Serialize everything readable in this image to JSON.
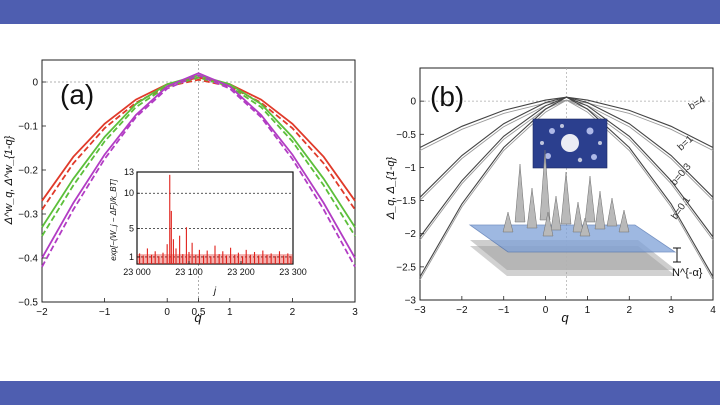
{
  "colors": {
    "band": "#4e5eb0",
    "red": "#e03a2a",
    "green": "#5cbf3a",
    "purple": "#b23cc4",
    "gray": "#555555",
    "inset_bar": "#e0201a"
  },
  "chart_data": [
    {
      "type": "line",
      "panel_label": "(a)",
      "xlabel": "q",
      "ylabel": "Δ^w_q, Δ^w_{1-q}",
      "xlim": [
        -2,
        3
      ],
      "ylim": [
        -0.5,
        0.05
      ],
      "x_ticks": [
        -2,
        -1,
        0,
        0.5,
        1,
        2,
        3
      ],
      "x_tick_labels": [
        "−2",
        "−1",
        "0",
        "0.5",
        "1",
        "2",
        "3"
      ],
      "y_ticks": [
        0,
        -0.1,
        -0.2,
        -0.3,
        -0.4,
        -0.5
      ],
      "y_tick_labels": [
        "0",
        "−0.1",
        "−0.2",
        "−0.3",
        "−0.4",
        "−0.5"
      ],
      "reference_lines": {
        "y": 0,
        "x": 0.5
      },
      "series": [
        {
          "color": "red",
          "style": "solid",
          "x": [
            -2,
            -1.5,
            -1,
            -0.5,
            0,
            0.5,
            1,
            1.5,
            2,
            2.5,
            3
          ],
          "y": [
            -0.27,
            -0.17,
            -0.095,
            -0.04,
            -0.005,
            0.01,
            -0.005,
            -0.04,
            -0.095,
            -0.17,
            -0.27
          ]
        },
        {
          "color": "red",
          "style": "dashed",
          "x": [
            -2,
            -1.5,
            -1,
            -0.5,
            0,
            0.5,
            1,
            1.5,
            2,
            2.5,
            3
          ],
          "y": [
            -0.29,
            -0.185,
            -0.105,
            -0.047,
            -0.01,
            0.005,
            -0.01,
            -0.047,
            -0.105,
            -0.185,
            -0.29
          ]
        },
        {
          "color": "green",
          "style": "solid",
          "x": [
            -2,
            -1.5,
            -1,
            -0.5,
            0,
            0.5,
            1,
            1.5,
            2,
            2.5,
            3
          ],
          "y": [
            -0.33,
            -0.22,
            -0.125,
            -0.05,
            -0.005,
            0.015,
            -0.005,
            -0.05,
            -0.125,
            -0.22,
            -0.33
          ]
        },
        {
          "color": "green",
          "style": "dashed",
          "x": [
            -2,
            -1.5,
            -1,
            -0.5,
            0,
            0.5,
            1,
            1.5,
            2,
            2.5,
            3
          ],
          "y": [
            -0.35,
            -0.235,
            -0.135,
            -0.057,
            -0.01,
            0.01,
            -0.01,
            -0.057,
            -0.135,
            -0.235,
            -0.35
          ]
        },
        {
          "color": "purple",
          "style": "solid",
          "x": [
            -2,
            -1.5,
            -1,
            -0.5,
            0,
            0.5,
            1,
            1.5,
            2,
            2.5,
            3
          ],
          "y": [
            -0.4,
            -0.275,
            -0.165,
            -0.075,
            -0.01,
            0.02,
            -0.01,
            -0.075,
            -0.165,
            -0.275,
            -0.4
          ]
        },
        {
          "color": "purple",
          "style": "dashed",
          "x": [
            -2,
            -1.5,
            -1,
            -0.5,
            0,
            0.5,
            1,
            1.5,
            2,
            2.5,
            3
          ],
          "y": [
            -0.42,
            -0.29,
            -0.175,
            -0.08,
            -0.015,
            0.015,
            -0.015,
            -0.08,
            -0.175,
            -0.29,
            -0.42
          ]
        }
      ],
      "inset": {
        "type": "bar",
        "xlabel": "j",
        "ylabel": "exp[−(W_j − ΔF)/k_BT]",
        "xlim": [
          23000,
          23300
        ],
        "ylim": [
          0,
          13
        ],
        "x_ticks": [
          23000,
          23100,
          23200,
          23300
        ],
        "x_tick_labels": [
          "23 000",
          "23 100",
          "23 200",
          "23 300"
        ],
        "y_ticks": [
          1,
          5,
          10,
          13
        ],
        "y_tick_labels": [
          "1",
          "5",
          "10",
          "13"
        ],
        "reference_lines_y": [
          1,
          5,
          10
        ],
        "spikes": [
          [
            23005,
            1.5
          ],
          [
            23012,
            1.2
          ],
          [
            23020,
            2.2
          ],
          [
            23028,
            1.3
          ],
          [
            23035,
            1.8
          ],
          [
            23042,
            1.1
          ],
          [
            23050,
            1.6
          ],
          [
            23058,
            2.8
          ],
          [
            23063,
            12.6
          ],
          [
            23066,
            7.5
          ],
          [
            23070,
            3.5
          ],
          [
            23075,
            2.2
          ],
          [
            23082,
            4.0
          ],
          [
            23088,
            1.4
          ],
          [
            23095,
            5.2
          ],
          [
            23100,
            1.7
          ],
          [
            23106,
            3.0
          ],
          [
            23113,
            1.3
          ],
          [
            23120,
            2.0
          ],
          [
            23128,
            1.2
          ],
          [
            23135,
            1.9
          ],
          [
            23142,
            1.1
          ],
          [
            23150,
            2.6
          ],
          [
            23158,
            1.4
          ],
          [
            23165,
            1.8
          ],
          [
            23172,
            1.2
          ],
          [
            23180,
            2.3
          ],
          [
            23188,
            1.3
          ],
          [
            23195,
            1.6
          ],
          [
            23203,
            1.1
          ],
          [
            23210,
            2.0
          ],
          [
            23218,
            1.3
          ],
          [
            23226,
            1.7
          ],
          [
            23234,
            1.2
          ],
          [
            23242,
            1.9
          ],
          [
            23250,
            1.3
          ],
          [
            23258,
            1.5
          ],
          [
            23266,
            1.1
          ],
          [
            23274,
            1.8
          ],
          [
            23282,
            1.2
          ],
          [
            23290,
            1.5
          ],
          [
            23296,
            1.1
          ]
        ]
      }
    },
    {
      "type": "line",
      "panel_label": "(b)",
      "xlabel": "q",
      "ylabel": "Δ_q, Δ_{1-q}",
      "xlim": [
        -3,
        4
      ],
      "ylim": [
        -3,
        0.5
      ],
      "x_ticks": [
        -3,
        -2,
        -1,
        0,
        1,
        2,
        3,
        4
      ],
      "x_tick_labels": [
        "−3",
        "−2",
        "−1",
        "0",
        "1",
        "2",
        "3",
        "4"
      ],
      "y_ticks": [
        0,
        -0.5,
        -1,
        -1.5,
        -2,
        -2.5,
        -3
      ],
      "y_tick_labels": [
        "0",
        "−0.5",
        "−1",
        "−1.5",
        "−2",
        "−2.5",
        "−3"
      ],
      "reference_lines": {
        "y": 0,
        "x": 0.5
      },
      "curve_labels": [
        "b=4",
        "b=1",
        "b=0.3",
        "b=0.1"
      ],
      "annotation": "N^{-α}",
      "series": [
        {
          "label": "b=4",
          "x": [
            -3,
            -2,
            -1,
            0,
            0.5,
            1,
            2,
            3,
            4
          ],
          "y": [
            -0.7,
            -0.38,
            -0.14,
            0.015,
            0.06,
            0.015,
            -0.14,
            -0.38,
            -0.7
          ]
        },
        {
          "label": "b=1",
          "x": [
            -3,
            -2,
            -1,
            0,
            0.5,
            1,
            2,
            3,
            4
          ],
          "y": [
            -1.45,
            -0.82,
            -0.34,
            -0.02,
            0.06,
            -0.02,
            -0.34,
            -0.82,
            -1.45
          ]
        },
        {
          "label": "b=0.3",
          "x": [
            -3,
            -2,
            -1,
            0,
            0.5,
            1,
            2,
            3,
            4
          ],
          "y": [
            -2.05,
            -1.2,
            -0.53,
            -0.07,
            0.06,
            -0.07,
            -0.53,
            -1.2,
            -2.05
          ]
        },
        {
          "label": "b=0.1",
          "x": [
            -3,
            -2,
            -1,
            0,
            0.5,
            1,
            2,
            3,
            4
          ],
          "y": [
            -2.65,
            -1.55,
            -0.7,
            -0.12,
            0.06,
            -0.12,
            -0.7,
            -1.55,
            -2.65
          ]
        }
      ]
    }
  ]
}
